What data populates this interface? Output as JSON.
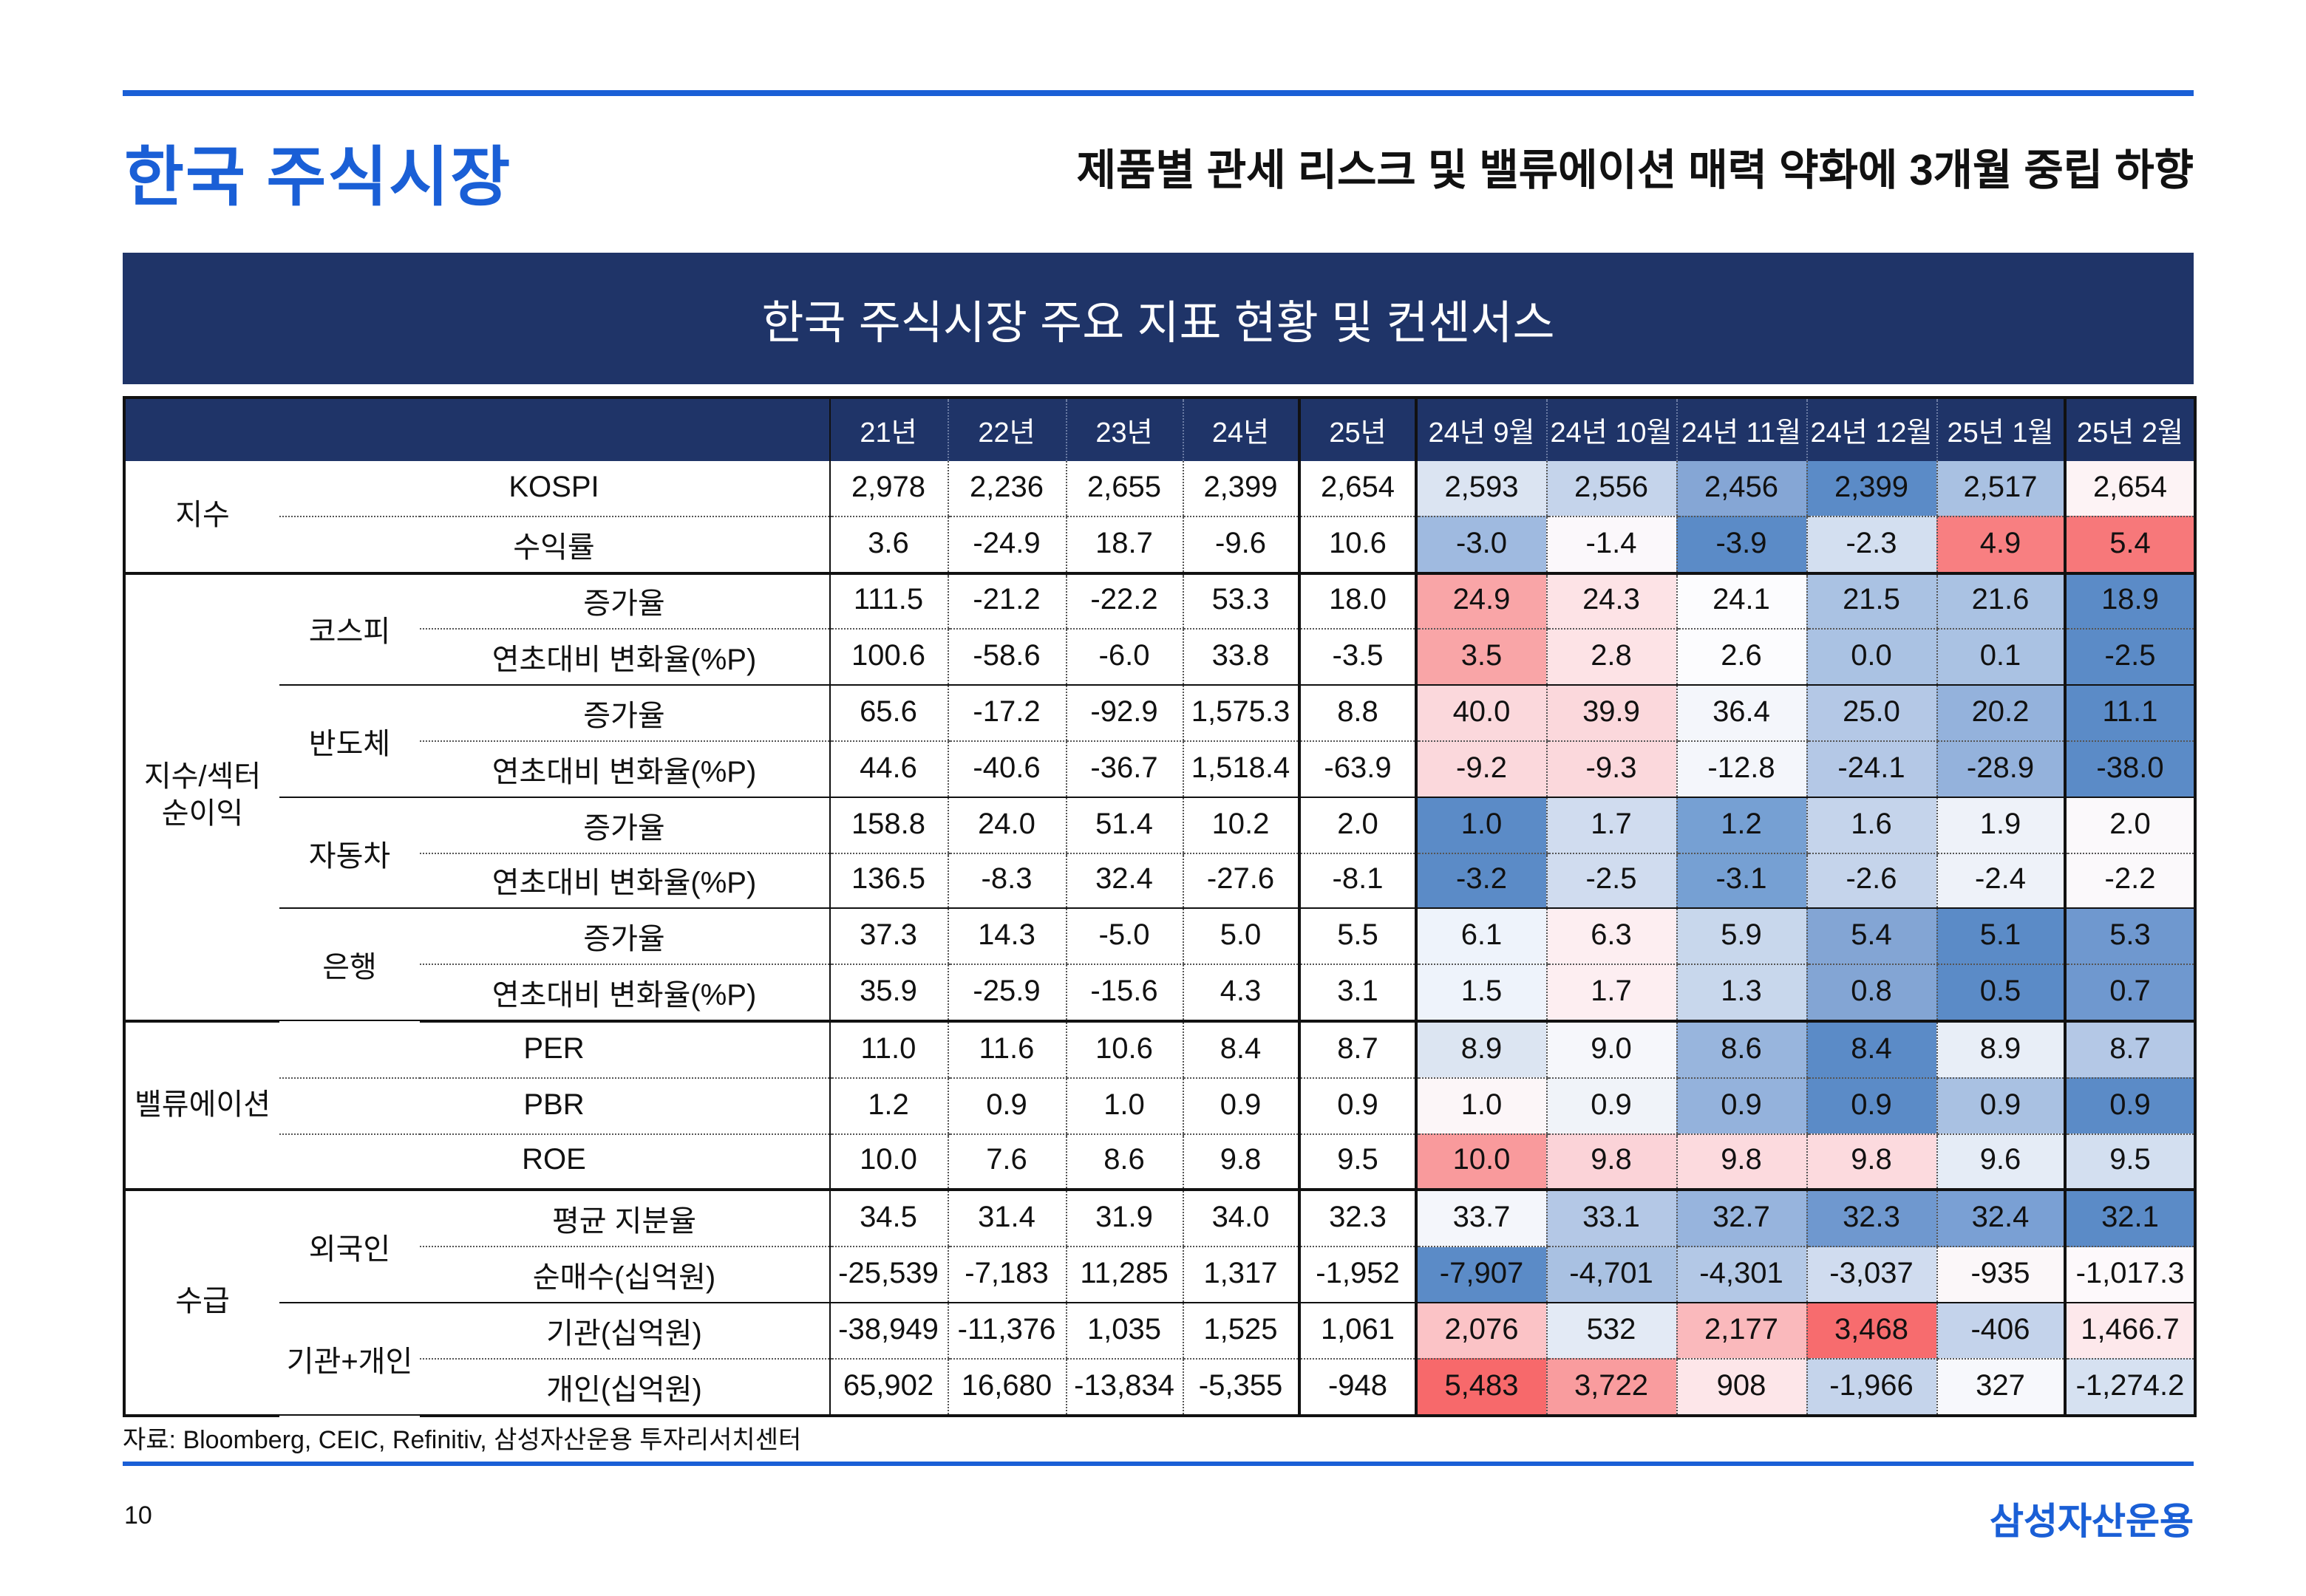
{
  "header": {
    "title": "한국 주식시장",
    "subtitle": "제품별 관세 리스크 및 밸류에이션 매력 약화에 3개월 중립 하향"
  },
  "banner": "한국 주식시장 주요 지표 현황 및 컨센서스",
  "chart_data": {
    "type": "table",
    "columns": [
      "21년",
      "22년",
      "23년",
      "24년",
      "25년",
      "24년 9월",
      "24년 10월",
      "24년 11월",
      "24년 12월",
      "25년 1월",
      "25년 2월"
    ],
    "groups": [
      {
        "name": "지수",
        "subs": [
          {
            "name": "",
            "rows": [
              {
                "label": "KOSPI",
                "values": [
                  "2,978",
                  "2,236",
                  "2,655",
                  "2,399",
                  "2,654",
                  "2,593",
                  "2,556",
                  "2,456",
                  "2,399",
                  "2,517",
                  "2,654"
                ],
                "colors": [
                  "#dbe4f2",
                  "#c5d4eb",
                  "#85a6d5",
                  "#5b8bc7",
                  "#a9c1e2",
                  "#fdf3f5"
                ]
              },
              {
                "label": "수익률",
                "values": [
                  "3.6",
                  "-24.9",
                  "18.7",
                  "-9.6",
                  "10.6",
                  "-3.0",
                  "-1.4",
                  "-3.9",
                  "-2.3",
                  "4.9",
                  "5.4"
                ],
                "colors": [
                  "#9fbae0",
                  "#fbf8fb",
                  "#5b8bc7",
                  "#d3dff0",
                  "#f87f81",
                  "#f7787a"
                ]
              }
            ]
          }
        ]
      },
      {
        "name": "지수/섹터\n순이익",
        "subs": [
          {
            "name": "코스피",
            "rows": [
              {
                "label": "증가율",
                "values": [
                  "111.5",
                  "-21.2",
                  "-22.2",
                  "53.3",
                  "18.0",
                  "24.9",
                  "24.3",
                  "24.1",
                  "21.5",
                  "21.6",
                  "18.9"
                ],
                "colors": [
                  "#f9a5a7",
                  "#fde3e6",
                  "#fcfcfe",
                  "#aac2e3",
                  "#aac2e3",
                  "#5b8bc7"
                ]
              },
              {
                "label": "연초대비 변화율(%P)",
                "values": [
                  "100.6",
                  "-58.6",
                  "-6.0",
                  "33.8",
                  "-3.5",
                  "3.5",
                  "2.8",
                  "2.6",
                  "0.0",
                  "0.1",
                  "-2.5"
                ],
                "colors": [
                  "#f9a5a7",
                  "#fde3e6",
                  "#fcfcfe",
                  "#aac2e3",
                  "#aac2e3",
                  "#5b8bc7"
                ]
              }
            ]
          },
          {
            "name": "반도체",
            "rows": [
              {
                "label": "증가율",
                "values": [
                  "65.6",
                  "-17.2",
                  "-92.9",
                  "1,575.3",
                  "8.8",
                  "40.0",
                  "39.9",
                  "36.4",
                  "25.0",
                  "20.2",
                  "11.1"
                ],
                "colors": [
                  "#fbd8dc",
                  "#fbd8dc",
                  "#f4f6fb",
                  "#b4c8e6",
                  "#94b2dc",
                  "#5b8bc7"
                ]
              },
              {
                "label": "연초대비 변화율(%P)",
                "values": [
                  "44.6",
                  "-40.6",
                  "-36.7",
                  "1,518.4",
                  "-63.9",
                  "-9.2",
                  "-9.3",
                  "-12.8",
                  "-24.1",
                  "-28.9",
                  "-38.0"
                ],
                "colors": [
                  "#fbd8dc",
                  "#fbd8dc",
                  "#f4f6fb",
                  "#b4c8e6",
                  "#94b2dc",
                  "#5b8bc7"
                ]
              }
            ]
          },
          {
            "name": "자동차",
            "rows": [
              {
                "label": "증가율",
                "values": [
                  "158.8",
                  "24.0",
                  "51.4",
                  "10.2",
                  "2.0",
                  "1.0",
                  "1.7",
                  "1.2",
                  "1.6",
                  "1.9",
                  "2.0"
                ],
                "colors": [
                  "#5b8bc7",
                  "#d0dcef",
                  "#76a0d3",
                  "#c5d4eb",
                  "#eef2f9",
                  "#fbf9fb"
                ]
              },
              {
                "label": "연초대비 변화율(%P)",
                "values": [
                  "136.5",
                  "-8.3",
                  "32.4",
                  "-27.6",
                  "-8.1",
                  "-3.2",
                  "-2.5",
                  "-3.1",
                  "-2.6",
                  "-2.4",
                  "-2.2"
                ],
                "colors": [
                  "#5b8bc7",
                  "#d0dcef",
                  "#76a0d3",
                  "#c5d4eb",
                  "#eef2f9",
                  "#fbf9fb"
                ]
              }
            ]
          },
          {
            "name": "은행",
            "rows": [
              {
                "label": "증가율",
                "values": [
                  "37.3",
                  "14.3",
                  "-5.0",
                  "5.0",
                  "5.5",
                  "6.1",
                  "6.3",
                  "5.9",
                  "5.4",
                  "5.1",
                  "5.3"
                ],
                "colors": [
                  "#eef3fb",
                  "#fdeef1",
                  "#c8d7ec",
                  "#83a5d4",
                  "#5b8bc7",
                  "#6f98cf"
                ]
              },
              {
                "label": "연초대비 변화율(%P)",
                "values": [
                  "35.9",
                  "-25.9",
                  "-15.6",
                  "4.3",
                  "3.1",
                  "1.5",
                  "1.7",
                  "1.3",
                  "0.8",
                  "0.5",
                  "0.7"
                ],
                "colors": [
                  "#eef3fb",
                  "#fdeef1",
                  "#c8d7ec",
                  "#83a5d4",
                  "#5b8bc7",
                  "#6f98cf"
                ]
              }
            ]
          }
        ]
      },
      {
        "name": "밸류에이션",
        "subs": [
          {
            "name": "",
            "rows": [
              {
                "label": "PER",
                "values": [
                  "11.0",
                  "11.6",
                  "10.6",
                  "8.4",
                  "8.7",
                  "8.9",
                  "9.0",
                  "8.6",
                  "8.4",
                  "8.9",
                  "8.7"
                ],
                "colors": [
                  "#dce5f2",
                  "#f6f7fb",
                  "#98b5dd",
                  "#5b8bc7",
                  "#e8eef7",
                  "#b4c8e6"
                ]
              },
              {
                "label": "PBR",
                "values": [
                  "1.2",
                  "0.9",
                  "1.0",
                  "0.9",
                  "0.9",
                  "1.0",
                  "0.9",
                  "0.9",
                  "0.9",
                  "0.9",
                  "0.9"
                ],
                "colors": [
                  "#fcf6f8",
                  "#f0f3f9",
                  "#94b2dc",
                  "#5b8bc7",
                  "#a9c1e2",
                  "#5b8bc7"
                ]
              },
              {
                "label": "ROE",
                "values": [
                  "10.0",
                  "7.6",
                  "8.6",
                  "9.8",
                  "9.5",
                  "10.0",
                  "9.8",
                  "9.8",
                  "9.8",
                  "9.6",
                  "9.5"
                ],
                "colors": [
                  "#f99a9c",
                  "#fbd3d8",
                  "#fcdade",
                  "#fcdade",
                  "#e5ecf6",
                  "#d3dff0"
                ]
              }
            ]
          }
        ]
      },
      {
        "name": "수급",
        "subs": [
          {
            "name": "외국인",
            "rows": [
              {
                "label": "평균 지분율",
                "values": [
                  "34.5",
                  "31.4",
                  "31.9",
                  "34.0",
                  "32.3",
                  "33.7",
                  "33.1",
                  "32.7",
                  "32.3",
                  "32.4",
                  "32.1"
                ],
                "colors": [
                  "#f4f6fb",
                  "#b4c8e6",
                  "#97b4dd",
                  "#6f98cf",
                  "#7aa0d4",
                  "#5b8bc7"
                ]
              },
              {
                "label": "순매수(십억원)",
                "values": [
                  "-25,539",
                  "-7,183",
                  "11,285",
                  "1,317",
                  "-1,952",
                  "-7,907",
                  "-4,701",
                  "-4,301",
                  "-3,037",
                  "-935",
                  "-1,017.3"
                ],
                "colors": [
                  "#5b8bc7",
                  "#a9c1e2",
                  "#b3c8e6",
                  "#d0dcef",
                  "#fbf7f9",
                  "#fdf9fb"
                ]
              }
            ]
          },
          {
            "name": "기관+개인",
            "rows": [
              {
                "label": "기관(십억원)",
                "values": [
                  "-38,949",
                  "-11,376",
                  "1,035",
                  "1,525",
                  "1,061",
                  "2,076",
                  "532",
                  "2,177",
                  "3,468",
                  "-406",
                  "1,466.7"
                ],
                "colors": [
                  "#fbc3c6",
                  "#e3eaf5",
                  "#fab9bc",
                  "#f76c6e",
                  "#c4d3eb",
                  "#fde8eb"
                ]
              },
              {
                "label": "개인(십억원)",
                "values": [
                  "65,902",
                  "16,680",
                  "-13,834",
                  "-5,355",
                  "-948",
                  "5,483",
                  "3,722",
                  "908",
                  "-1,966",
                  "327",
                  "-1,274.2"
                ],
                "colors": [
                  "#f7696b",
                  "#f99c9e",
                  "#fde6e9",
                  "#c5d4eb",
                  "#f7f8fc",
                  "#d6e1f1"
                ]
              }
            ]
          }
        ]
      }
    ]
  },
  "footer": {
    "source": "자료: Bloomberg, CEIC, Refinitiv, 삼성자산운용 투자리서치센터",
    "page_number": "10",
    "logo": "삼성자산운용"
  }
}
